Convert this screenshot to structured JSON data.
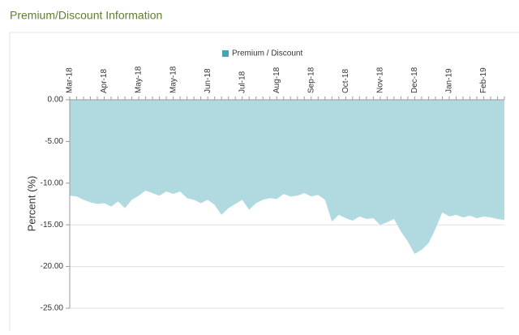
{
  "header": {
    "title": "Premium/Discount Information"
  },
  "chart_data": {
    "type": "area",
    "y_label": "Percent (%)",
    "categories": [
      "Mar-18",
      null,
      null,
      null,
      null,
      "Apr-18",
      null,
      null,
      null,
      null,
      "May-18",
      null,
      null,
      null,
      null,
      "May-18",
      null,
      null,
      null,
      null,
      "Jun-18",
      null,
      null,
      null,
      null,
      "Jul-18",
      null,
      null,
      null,
      null,
      "Aug-18",
      null,
      null,
      null,
      null,
      "Sep-18",
      null,
      null,
      null,
      null,
      "Oct-18",
      null,
      null,
      null,
      null,
      "Nov-18",
      null,
      null,
      null,
      null,
      "Dec-18",
      null,
      null,
      null,
      null,
      "Jan-19",
      null,
      null,
      null,
      null,
      "Feb-19",
      null,
      null,
      null
    ],
    "series": [
      {
        "name": "Premium / Discount",
        "color": "#4aa3b5",
        "fill": "#b0dae0",
        "values": [
          -11.5,
          -11.6,
          -12.0,
          -12.3,
          -12.5,
          -12.4,
          -12.8,
          -12.2,
          -13.0,
          -12.0,
          -11.5,
          -10.9,
          -11.2,
          -11.5,
          -11.0,
          -11.3,
          -11.0,
          -11.8,
          -12.0,
          -12.4,
          -12.0,
          -12.6,
          -13.8,
          -13.0,
          -12.5,
          -12.0,
          -13.2,
          -12.4,
          -12.0,
          -11.8,
          -11.9,
          -11.3,
          -11.6,
          -11.5,
          -11.2,
          -11.6,
          -11.4,
          -12.0,
          -14.6,
          -13.8,
          -14.2,
          -14.5,
          -14.0,
          -14.3,
          -14.2,
          -15.0,
          -14.7,
          -14.3,
          -15.8,
          -17.0,
          -18.5,
          -18.0,
          -17.2,
          -15.5,
          -13.5,
          -14.0,
          -13.8,
          -14.1,
          -13.9,
          -14.2,
          -14.0,
          -14.1,
          -14.3,
          -14.4
        ]
      }
    ],
    "ylim": [
      -25,
      0
    ],
    "yticks": [
      {
        "value": 0,
        "label": "0.00"
      },
      {
        "value": -5,
        "label": "-5.00"
      },
      {
        "value": -10,
        "label": "-10.00"
      },
      {
        "value": -15,
        "label": "-15.00"
      },
      {
        "value": -20,
        "label": "-20.00"
      },
      {
        "value": -25,
        "label": "-25.00"
      }
    ],
    "grid": true,
    "legend": "top"
  }
}
